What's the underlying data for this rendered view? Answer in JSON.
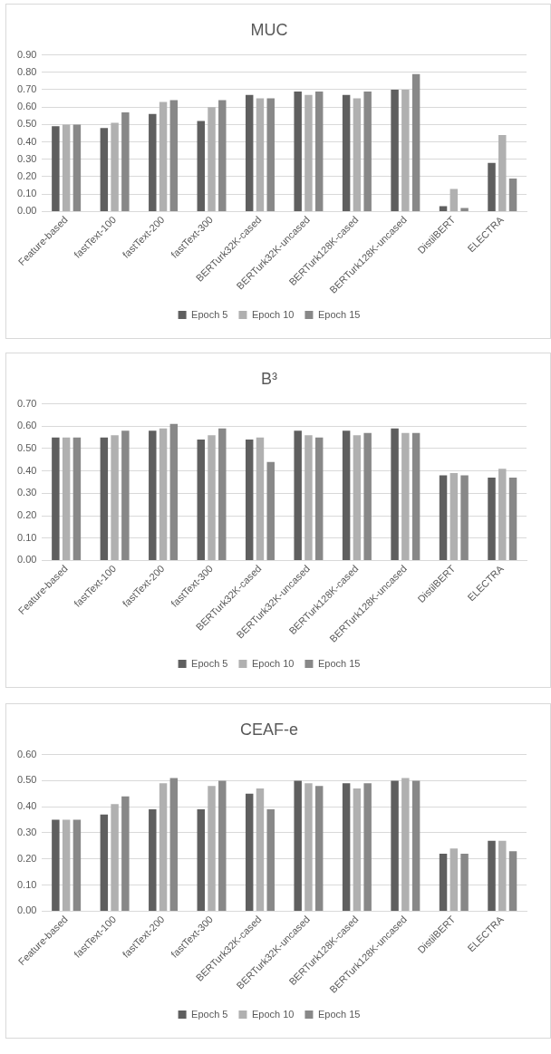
{
  "chart_data": [
    {
      "type": "bar",
      "title": "MUC",
      "categories": [
        "Feature-based",
        "fastText-100",
        "fastText-200",
        "fastText-300",
        "BERTurk32K-cased",
        "BERTurk32K-uncased",
        "BERTurk128K-cased",
        "BERTurk128K-uncased",
        "DistilBERT",
        "ELECTRA"
      ],
      "series": [
        {
          "name": "Epoch 5",
          "color": "#5f5f5f",
          "values": [
            0.49,
            0.48,
            0.56,
            0.52,
            0.67,
            0.69,
            0.67,
            0.7,
            0.03,
            0.28
          ]
        },
        {
          "name": "Epoch 10",
          "color": "#b0b0b0",
          "values": [
            0.5,
            0.51,
            0.63,
            0.6,
            0.65,
            0.67,
            0.65,
            0.7,
            0.13,
            0.44
          ]
        },
        {
          "name": "Epoch 15",
          "color": "#888888",
          "values": [
            0.5,
            0.57,
            0.64,
            0.64,
            0.65,
            0.69,
            0.69,
            0.79,
            0.02,
            0.19
          ]
        }
      ],
      "ylim": [
        0,
        0.9
      ],
      "yticks": [
        {
          "value": 0,
          "label": "0.00"
        },
        {
          "value": 0.1,
          "label": "0.10"
        },
        {
          "value": 0.2,
          "label": "0.20"
        },
        {
          "value": 0.3,
          "label": "0.30"
        },
        {
          "value": 0.4,
          "label": "0.40"
        },
        {
          "value": 0.5,
          "label": "0.50"
        },
        {
          "value": 0.6,
          "label": "0.60"
        },
        {
          "value": 0.7,
          "label": "0.70"
        },
        {
          "value": 0.8,
          "label": "0.80"
        },
        {
          "value": 0.9,
          "label": "0.90"
        }
      ],
      "grid": "y",
      "legend": "bottom"
    },
    {
      "type": "bar",
      "title": "B³",
      "categories": [
        "Feature-based",
        "fastText-100",
        "fastText-200",
        "fastText-300",
        "BERTurk32K-cased",
        "BERTurk32K-uncased",
        "BERTurk128K-cased",
        "BERTurk128K-uncased",
        "DistilBERT",
        "ELECTRA"
      ],
      "series": [
        {
          "name": "Epoch 5",
          "color": "#5f5f5f",
          "values": [
            0.55,
            0.55,
            0.58,
            0.54,
            0.54,
            0.58,
            0.58,
            0.59,
            0.38,
            0.37
          ]
        },
        {
          "name": "Epoch 10",
          "color": "#b0b0b0",
          "values": [
            0.55,
            0.56,
            0.59,
            0.56,
            0.55,
            0.56,
            0.56,
            0.57,
            0.39,
            0.41
          ]
        },
        {
          "name": "Epoch 15",
          "color": "#888888",
          "values": [
            0.55,
            0.58,
            0.61,
            0.59,
            0.44,
            0.55,
            0.57,
            0.57,
            0.38,
            0.37
          ]
        }
      ],
      "ylim": [
        0,
        0.7
      ],
      "yticks": [
        {
          "value": 0,
          "label": "0.00"
        },
        {
          "value": 0.1,
          "label": "0.10"
        },
        {
          "value": 0.2,
          "label": "0.20"
        },
        {
          "value": 0.3,
          "label": "0.30"
        },
        {
          "value": 0.4,
          "label": "0.40"
        },
        {
          "value": 0.5,
          "label": "0.50"
        },
        {
          "value": 0.6,
          "label": "0.60"
        },
        {
          "value": 0.7,
          "label": "0.70"
        }
      ],
      "grid": "y",
      "legend": "bottom"
    },
    {
      "type": "bar",
      "title": "CEAF-e",
      "categories": [
        "Feature-based",
        "fastText-100",
        "fastText-200",
        "fastText-300",
        "BERTurk32K-cased",
        "BERTurk32K-uncased",
        "BERTurk128K-cased",
        "BERTurk128K-uncased",
        "DistilBERT",
        "ELECTRA"
      ],
      "series": [
        {
          "name": "Epoch 5",
          "color": "#5f5f5f",
          "values": [
            0.35,
            0.37,
            0.39,
            0.39,
            0.45,
            0.5,
            0.49,
            0.5,
            0.22,
            0.27
          ]
        },
        {
          "name": "Epoch 10",
          "color": "#b0b0b0",
          "values": [
            0.35,
            0.41,
            0.49,
            0.48,
            0.47,
            0.49,
            0.47,
            0.51,
            0.24,
            0.27
          ]
        },
        {
          "name": "Epoch 15",
          "color": "#888888",
          "values": [
            0.35,
            0.44,
            0.51,
            0.5,
            0.39,
            0.48,
            0.49,
            0.5,
            0.22,
            0.23
          ]
        }
      ],
      "ylim": [
        0,
        0.6
      ],
      "yticks": [
        {
          "value": 0,
          "label": "0.00"
        },
        {
          "value": 0.1,
          "label": "0.10"
        },
        {
          "value": 0.2,
          "label": "0.20"
        },
        {
          "value": 0.3,
          "label": "0.30"
        },
        {
          "value": 0.4,
          "label": "0.40"
        },
        {
          "value": 0.5,
          "label": "0.50"
        },
        {
          "value": 0.6,
          "label": "0.60"
        }
      ],
      "grid": "y",
      "legend": "bottom"
    }
  ]
}
